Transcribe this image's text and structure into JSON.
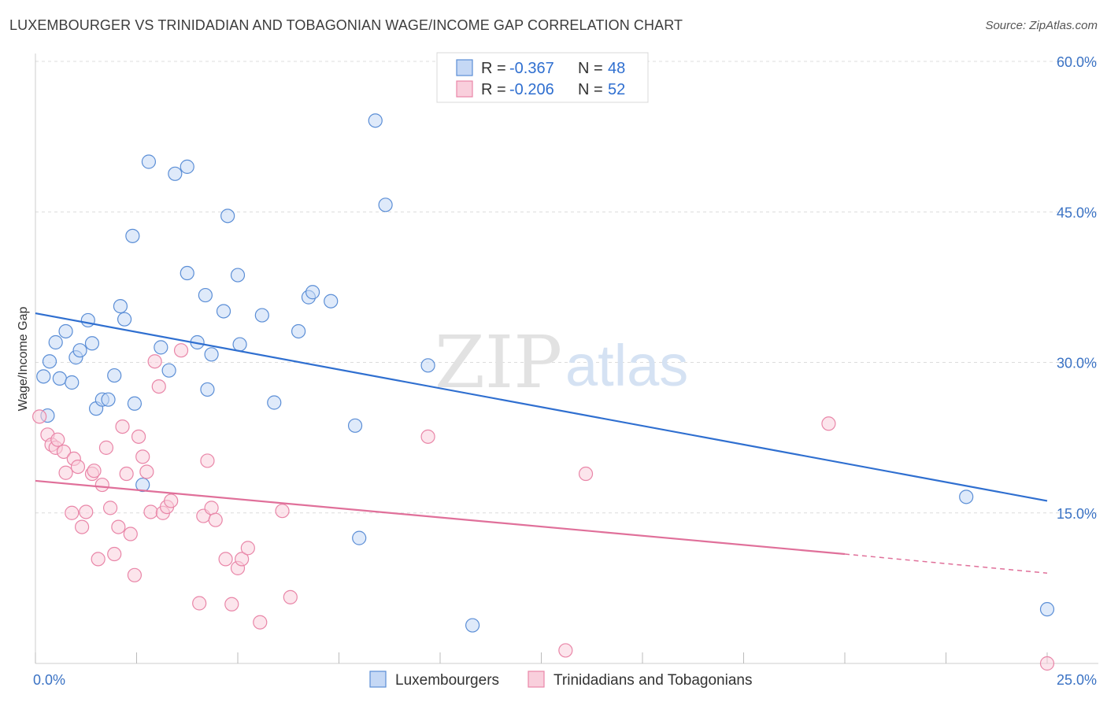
{
  "title": "LUXEMBOURGER VS TRINIDADIAN AND TOBAGONIAN WAGE/INCOME GAP CORRELATION CHART",
  "source": "Source: ZipAtlas.com",
  "watermark": {
    "zip": "ZIP",
    "atlas": "atlas"
  },
  "legend": {
    "r_label": "R =",
    "n_label": "N =",
    "series": [
      {
        "r": "-0.367",
        "n": "48"
      },
      {
        "r": "-0.206",
        "n": "52"
      }
    ]
  },
  "chart_data": {
    "type": "scatter",
    "title": "LUXEMBOURGER VS TRINIDADIAN AND TOBAGONIAN WAGE/INCOME GAP CORRELATION CHART",
    "xlabel": "",
    "ylabel": "Wage/Income Gap",
    "xlim": [
      0,
      25
    ],
    "ylim": [
      0,
      60
    ],
    "x_tick_labels": [
      "0.0%",
      "25.0%"
    ],
    "y_ticks": [
      15,
      30,
      45,
      60
    ],
    "y_tick_labels": [
      "15.0%",
      "30.0%",
      "45.0%",
      "60.0%"
    ],
    "grid": true,
    "legend_placement": "top-center",
    "colors": {
      "luxembourgers": "#5b8ed6",
      "trinidadians": "#e986a8",
      "lux_line": "#2f6fd0",
      "tt_line": "#e0709a"
    },
    "series": [
      {
        "name": "Luxembourgers",
        "trend": {
          "x": [
            0,
            25
          ],
          "y": [
            34.9,
            16.2
          ]
        },
        "points": [
          [
            0.2,
            28.6
          ],
          [
            0.3,
            24.7
          ],
          [
            0.35,
            30.1
          ],
          [
            0.5,
            32.0
          ],
          [
            0.6,
            28.4
          ],
          [
            0.75,
            33.1
          ],
          [
            0.9,
            28.0
          ],
          [
            1.0,
            30.5
          ],
          [
            1.1,
            31.2
          ],
          [
            1.3,
            34.2
          ],
          [
            1.4,
            31.9
          ],
          [
            1.5,
            25.4
          ],
          [
            1.65,
            26.3
          ],
          [
            1.8,
            26.3
          ],
          [
            1.95,
            28.7
          ],
          [
            2.1,
            35.6
          ],
          [
            2.2,
            34.3
          ],
          [
            2.4,
            42.6
          ],
          [
            2.45,
            25.9
          ],
          [
            2.65,
            17.8
          ],
          [
            2.8,
            50.0
          ],
          [
            3.1,
            31.5
          ],
          [
            3.3,
            29.2
          ],
          [
            3.45,
            48.8
          ],
          [
            3.75,
            49.5
          ],
          [
            3.75,
            38.9
          ],
          [
            4.0,
            32.0
          ],
          [
            4.2,
            36.7
          ],
          [
            4.25,
            27.3
          ],
          [
            4.35,
            30.8
          ],
          [
            4.65,
            35.1
          ],
          [
            4.75,
            44.6
          ],
          [
            5.0,
            38.7
          ],
          [
            5.05,
            31.8
          ],
          [
            5.6,
            34.7
          ],
          [
            5.9,
            26.0
          ],
          [
            6.5,
            33.1
          ],
          [
            6.75,
            36.5
          ],
          [
            6.85,
            37.0
          ],
          [
            7.3,
            36.1
          ],
          [
            7.9,
            23.7
          ],
          [
            8.0,
            12.5
          ],
          [
            8.4,
            54.1
          ],
          [
            8.65,
            45.7
          ],
          [
            9.7,
            29.7
          ],
          [
            10.8,
            3.8
          ],
          [
            23.0,
            16.6
          ],
          [
            25.0,
            5.4
          ]
        ]
      },
      {
        "name": "Trinidadians and Tobagonians",
        "trend": {
          "x": [
            0,
            20
          ],
          "y": [
            18.2,
            10.9
          ]
        },
        "trend_dashed": {
          "x": [
            20,
            25
          ],
          "y": [
            10.9,
            9.0
          ]
        },
        "points": [
          [
            0.1,
            24.6
          ],
          [
            0.3,
            22.8
          ],
          [
            0.4,
            21.8
          ],
          [
            0.5,
            21.5
          ],
          [
            0.55,
            22.3
          ],
          [
            0.7,
            21.1
          ],
          [
            0.75,
            19.0
          ],
          [
            0.9,
            15.0
          ],
          [
            0.95,
            20.4
          ],
          [
            1.05,
            19.6
          ],
          [
            1.15,
            13.6
          ],
          [
            1.25,
            15.1
          ],
          [
            1.4,
            18.9
          ],
          [
            1.45,
            19.2
          ],
          [
            1.55,
            10.4
          ],
          [
            1.65,
            17.8
          ],
          [
            1.75,
            21.5
          ],
          [
            1.85,
            15.5
          ],
          [
            1.95,
            10.9
          ],
          [
            2.05,
            13.6
          ],
          [
            2.15,
            23.6
          ],
          [
            2.25,
            18.9
          ],
          [
            2.35,
            12.9
          ],
          [
            2.45,
            8.8
          ],
          [
            2.55,
            22.6
          ],
          [
            2.65,
            20.6
          ],
          [
            2.75,
            19.1
          ],
          [
            2.85,
            15.1
          ],
          [
            2.95,
            30.1
          ],
          [
            3.05,
            27.6
          ],
          [
            3.15,
            15.0
          ],
          [
            3.25,
            15.6
          ],
          [
            3.35,
            16.2
          ],
          [
            3.6,
            31.2
          ],
          [
            4.05,
            6.0
          ],
          [
            4.15,
            14.7
          ],
          [
            4.25,
            20.2
          ],
          [
            4.35,
            15.5
          ],
          [
            4.45,
            14.3
          ],
          [
            4.7,
            10.4
          ],
          [
            4.85,
            5.9
          ],
          [
            5.0,
            9.5
          ],
          [
            5.1,
            10.4
          ],
          [
            5.25,
            11.5
          ],
          [
            5.55,
            4.1
          ],
          [
            6.1,
            15.2
          ],
          [
            6.3,
            6.6
          ],
          [
            9.7,
            22.6
          ],
          [
            13.1,
            1.3
          ],
          [
            13.6,
            18.9
          ],
          [
            19.6,
            23.9
          ],
          [
            25.0,
            0.0
          ]
        ]
      }
    ]
  }
}
